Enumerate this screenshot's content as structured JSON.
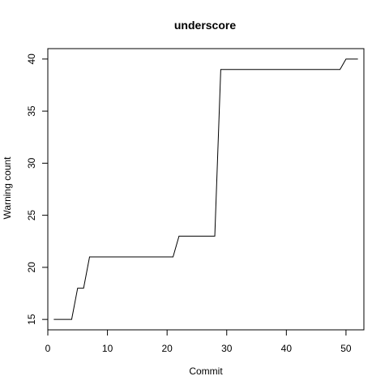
{
  "chart_data": {
    "type": "line",
    "title": "underscore",
    "xlabel": "Commit",
    "ylabel": "Warning count",
    "xlim": [
      -0.0,
      53.0
    ],
    "ylim": [
      14.0,
      41.0
    ],
    "xticks": [
      0,
      10,
      20,
      30,
      40,
      50
    ],
    "yticks": [
      15,
      20,
      25,
      30,
      35,
      40
    ],
    "grid": false,
    "x": [
      1,
      2,
      3,
      4,
      5,
      6,
      7,
      8,
      9,
      10,
      11,
      12,
      13,
      14,
      15,
      16,
      17,
      18,
      19,
      20,
      21,
      22,
      23,
      24,
      25,
      26,
      27,
      28,
      29,
      30,
      31,
      32,
      33,
      34,
      35,
      36,
      37,
      38,
      39,
      40,
      41,
      42,
      43,
      44,
      45,
      46,
      47,
      48,
      49,
      50,
      51,
      52
    ],
    "y": [
      15,
      15,
      15,
      15,
      18,
      18,
      21,
      21,
      21,
      21,
      21,
      21,
      21,
      21,
      21,
      21,
      21,
      21,
      21,
      21,
      21,
      23,
      23,
      23,
      23,
      23,
      23,
      23,
      39,
      39,
      39,
      39,
      39,
      39,
      39,
      39,
      39,
      39,
      39,
      39,
      39,
      39,
      39,
      39,
      39,
      39,
      39,
      39,
      39,
      40,
      40,
      40
    ]
  }
}
